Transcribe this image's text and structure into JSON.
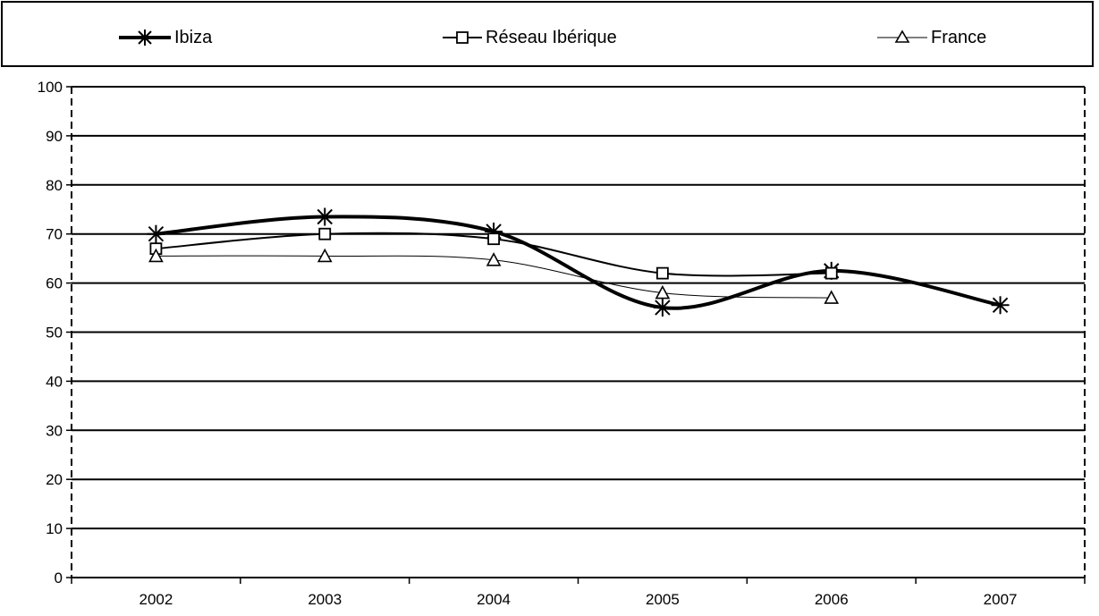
{
  "chart_data": {
    "type": "line",
    "title": "",
    "xlabel": "",
    "ylabel": "",
    "categories": [
      "2002",
      "2003",
      "2004",
      "2005",
      "2006",
      "2007"
    ],
    "ylim": [
      0,
      100
    ],
    "yticks": [
      0,
      10,
      20,
      30,
      40,
      50,
      60,
      70,
      80,
      90,
      100
    ],
    "grid": "horizontal",
    "legend_position": "top",
    "series": [
      {
        "name": "Ibiza",
        "marker": "asterisk",
        "line_weight": "thick",
        "values": [
          70,
          73.5,
          70.5,
          55,
          62.5,
          55.5
        ]
      },
      {
        "name": "Réseau Ibérique",
        "marker": "square",
        "line_weight": "medium",
        "values": [
          67,
          70,
          69,
          62,
          62,
          null
        ]
      },
      {
        "name": "France",
        "marker": "triangle",
        "line_weight": "thin",
        "values": [
          65.5,
          65.5,
          64.7,
          58,
          57,
          null
        ]
      }
    ]
  }
}
